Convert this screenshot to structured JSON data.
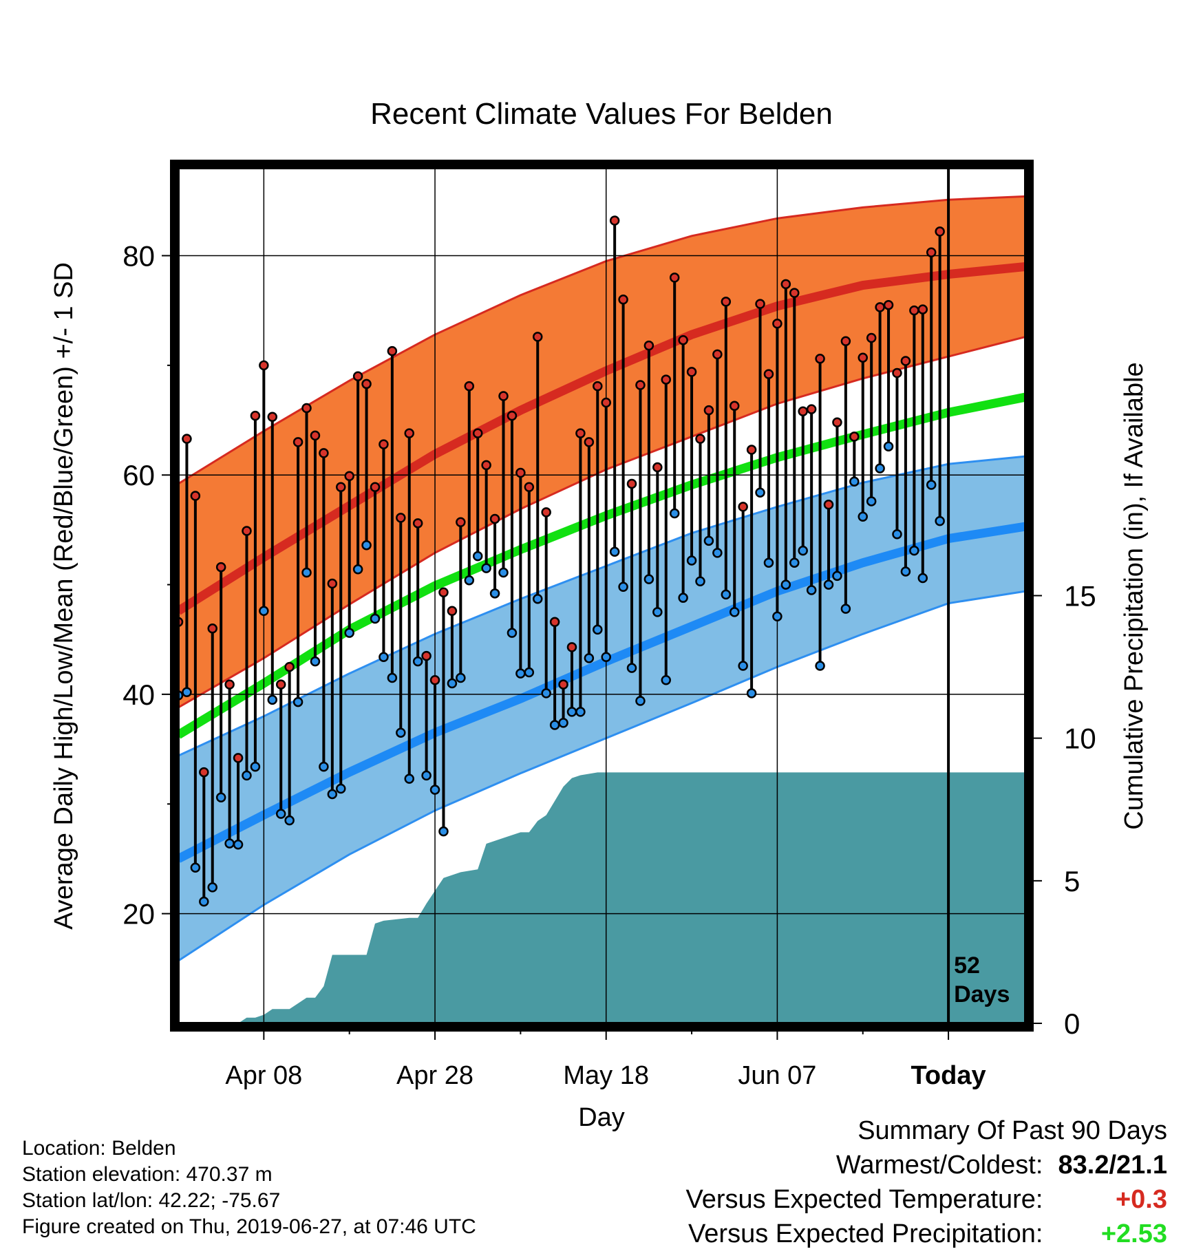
{
  "chart_data": {
    "type": "line",
    "title": "Recent Climate Values For Belden",
    "xlabel": "Day",
    "ylabel": "Average Daily High/Low/Mean (Red/Blue/Green) +/- 1 SD",
    "y2label": "Cumulative Precipitation (in), If Available",
    "x_range": [
      "2019-03-29",
      "2019-07-06"
    ],
    "ylim": [
      10,
      88
    ],
    "y2lim": [
      0,
      30
    ],
    "x_ticks": [
      {
        "date": "2019-04-08",
        "label": "Apr 08"
      },
      {
        "date": "2019-04-28",
        "label": "Apr 28"
      },
      {
        "date": "2019-05-18",
        "label": "May 18"
      },
      {
        "date": "2019-06-07",
        "label": "Jun 07"
      },
      {
        "date": "2019-06-27",
        "label": "Today"
      }
    ],
    "y_ticks": [
      20,
      40,
      60,
      80
    ],
    "y2_ticks": [
      0,
      5,
      10,
      15
    ],
    "grid": true,
    "today_date": "2019-06-27",
    "today_label": [
      "52",
      "Days"
    ],
    "colors": {
      "high_band": "#f47a35",
      "high_edge": "#d62a20",
      "high_mean": "#d62a20",
      "low_band": "#80bde6",
      "low_edge": "#2e8ff0",
      "low_mean": "#1e8af5",
      "mean_line": "#11e011",
      "precip": "#4a9aa2",
      "high_dot": "#d6342b",
      "low_dot": "#2b8fe6"
    },
    "normals": {
      "x": [
        "2019-03-29",
        "2019-04-08",
        "2019-04-18",
        "2019-04-28",
        "2019-05-08",
        "2019-05-18",
        "2019-05-28",
        "2019-06-07",
        "2019-06-17",
        "2019-06-27",
        "2019-07-06"
      ],
      "high_mean": [
        47.6,
        52.5,
        57.2,
        61.9,
        65.9,
        69.5,
        72.8,
        75.4,
        77.3,
        78.3,
        79.0
      ],
      "high_upper": [
        59.2,
        64.0,
        68.6,
        72.8,
        76.4,
        79.5,
        81.8,
        83.4,
        84.4,
        85.1,
        85.4
      ],
      "high_lower": [
        38.8,
        43.3,
        48.2,
        52.9,
        56.9,
        60.5,
        63.5,
        66.5,
        68.8,
        70.8,
        72.6
      ],
      "mean": [
        36.3,
        41.0,
        45.9,
        49.9,
        53.2,
        56.3,
        59.1,
        61.6,
        63.7,
        65.7,
        67.1
      ],
      "low_mean": [
        25.0,
        29.0,
        32.9,
        36.5,
        39.6,
        43.0,
        46.2,
        49.4,
        52.0,
        54.2,
        55.3
      ],
      "low_upper": [
        34.4,
        38.0,
        41.9,
        45.5,
        48.7,
        51.7,
        54.7,
        57.1,
        59.3,
        61.0,
        61.7
      ],
      "low_lower": [
        15.7,
        20.8,
        25.4,
        29.4,
        32.8,
        36.0,
        39.2,
        42.5,
        45.5,
        48.3,
        49.4
      ]
    },
    "precip": {
      "x": [
        "2019-03-29",
        "2019-04-05",
        "2019-04-06",
        "2019-04-07",
        "2019-04-08",
        "2019-04-09",
        "2019-04-11",
        "2019-04-13",
        "2019-04-14",
        "2019-04-15",
        "2019-04-16",
        "2019-04-17",
        "2019-04-20",
        "2019-04-21",
        "2019-04-22",
        "2019-04-25",
        "2019-04-26",
        "2019-04-27",
        "2019-04-29",
        "2019-05-01",
        "2019-05-03",
        "2019-05-04",
        "2019-05-06",
        "2019-05-08",
        "2019-05-09",
        "2019-05-10",
        "2019-05-11",
        "2019-05-12",
        "2019-05-13",
        "2019-05-14",
        "2019-05-15",
        "2019-05-17",
        "2019-05-18",
        "2019-07-06"
      ],
      "values": [
        0.0,
        0.0,
        0.2,
        0.2,
        0.3,
        0.5,
        0.5,
        0.9,
        0.9,
        1.3,
        2.4,
        2.4,
        2.4,
        3.5,
        3.6,
        3.7,
        3.7,
        4.2,
        5.1,
        5.3,
        5.4,
        6.3,
        6.5,
        6.7,
        6.7,
        7.1,
        7.3,
        7.8,
        8.3,
        8.6,
        8.7,
        8.8,
        8.8,
        8.8
      ]
    },
    "daily_start": "2019-03-29",
    "daily_high": [
      46.6,
      63.3,
      58.1,
      32.9,
      46.0,
      51.6,
      40.9,
      34.2,
      54.9,
      65.4,
      70.0,
      65.3,
      40.9,
      42.5,
      63.0,
      66.1,
      63.6,
      62.0,
      50.1,
      58.9,
      59.9,
      69.0,
      68.3,
      58.9,
      62.8,
      71.3,
      56.1,
      63.8,
      55.6,
      43.5,
      41.3,
      49.3,
      47.6,
      55.7,
      68.1,
      63.8,
      60.9,
      56.0,
      67.2,
      65.4,
      60.2,
      58.9,
      72.6,
      56.6,
      46.6,
      40.9,
      44.3,
      63.8,
      63.0,
      68.1,
      66.6,
      83.2,
      76.0,
      59.2,
      68.2,
      71.8,
      60.7,
      68.7,
      78.0,
      72.3,
      69.4,
      63.3,
      65.9,
      71.0,
      75.8,
      66.3,
      57.1,
      62.3,
      75.6,
      69.2,
      73.8,
      77.4,
      76.6,
      65.8,
      66.0,
      70.6,
      57.3,
      64.8,
      72.2,
      63.5,
      70.7,
      72.5,
      75.3,
      75.5,
      69.3,
      70.4,
      75.0,
      75.1,
      80.3,
      82.2
    ],
    "daily_low": [
      39.9,
      40.2,
      24.2,
      21.1,
      22.4,
      30.6,
      26.4,
      26.3,
      32.6,
      33.4,
      47.6,
      39.5,
      29.1,
      28.5,
      39.3,
      51.1,
      43.0,
      33.4,
      30.9,
      31.4,
      45.6,
      51.4,
      53.6,
      46.9,
      43.4,
      41.5,
      36.5,
      32.3,
      43.0,
      32.6,
      31.3,
      27.5,
      41.0,
      41.5,
      50.4,
      52.6,
      51.5,
      49.2,
      51.1,
      45.6,
      41.9,
      42.0,
      48.7,
      40.1,
      37.2,
      37.4,
      38.4,
      38.4,
      43.3,
      45.9,
      43.4,
      53.0,
      49.8,
      42.4,
      39.4,
      50.5,
      47.5,
      41.3,
      56.5,
      48.8,
      52.2,
      50.3,
      54.0,
      52.9,
      49.1,
      47.5,
      42.6,
      40.1,
      58.4,
      52.0,
      47.1,
      50.0,
      52.0,
      53.1,
      49.5,
      42.6,
      50.0,
      50.8,
      47.8,
      59.4,
      56.2,
      57.6,
      60.6,
      62.6,
      54.6,
      51.2,
      53.1,
      50.6,
      59.1,
      55.8
    ]
  },
  "info": {
    "location": "Location: Belden",
    "elevation": "Station elevation: 470.37 m",
    "latlon": "Station lat/lon: 42.22; -75.67",
    "created": "Figure created on Thu, 2019-06-27, at 07:46 UTC"
  },
  "summary": {
    "title": "Summary Of Past 90 Days",
    "warm_cold_label": "Warmest/Coldest:",
    "warm_cold_value": "83.2/21.1",
    "temp_label": "Versus Expected Temperature:",
    "temp_value": "+0.3",
    "temp_color": "#d62a20",
    "precip_label": "Versus Expected Precipitation:",
    "precip_value": "+2.53",
    "precip_color": "#22dd22"
  }
}
